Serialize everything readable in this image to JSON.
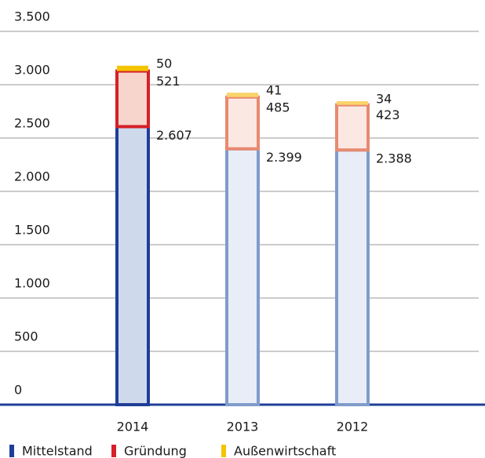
{
  "chart_data": {
    "type": "stacked_bar",
    "categories": [
      "2014",
      "2013",
      "2012"
    ],
    "series": [
      {
        "name": "Mittelstand",
        "color": "#1f3e97",
        "stroke_colors": [
          "#1f3e97",
          "#7f9ccb",
          "#7f9ccb"
        ],
        "fill_colors": [
          "#cfd9ec",
          "#e8edf7",
          "#e8edf7"
        ],
        "values": [
          2607,
          2399,
          2388
        ],
        "value_labels": [
          "2.607",
          "2.399",
          "2.388"
        ]
      },
      {
        "name": "Gründung",
        "color": "#d52027",
        "stroke_colors": [
          "#d52027",
          "#e88a70",
          "#e88a70"
        ],
        "fill_colors": [
          "#f7d5cc",
          "#fbe8e3",
          "#fbe8e3"
        ],
        "values": [
          521,
          485,
          423
        ]
      },
      {
        "name": "Außenwirtschaft",
        "color": "#f5c400",
        "stroke_colors": [
          "#f5c400",
          "#f9d46a",
          "#f9d46a"
        ],
        "fill_colors": [
          "#f5c400",
          "#f9d46a",
          "#f9d46a"
        ],
        "values": [
          50,
          41,
          34
        ]
      }
    ],
    "ylim": [
      0,
      3500
    ],
    "yticks": [
      0,
      500,
      {
        "value": 1000,
        "label": "1.000"
      },
      {
        "value": 1500,
        "label": "1.500"
      },
      {
        "value": 2000,
        "label": "2.000"
      },
      {
        "value": 2500,
        "label": "2.500"
      },
      {
        "value": 3000,
        "label": "3.000"
      },
      {
        "value": 3500,
        "label": "3.500"
      }
    ],
    "grid": true
  }
}
